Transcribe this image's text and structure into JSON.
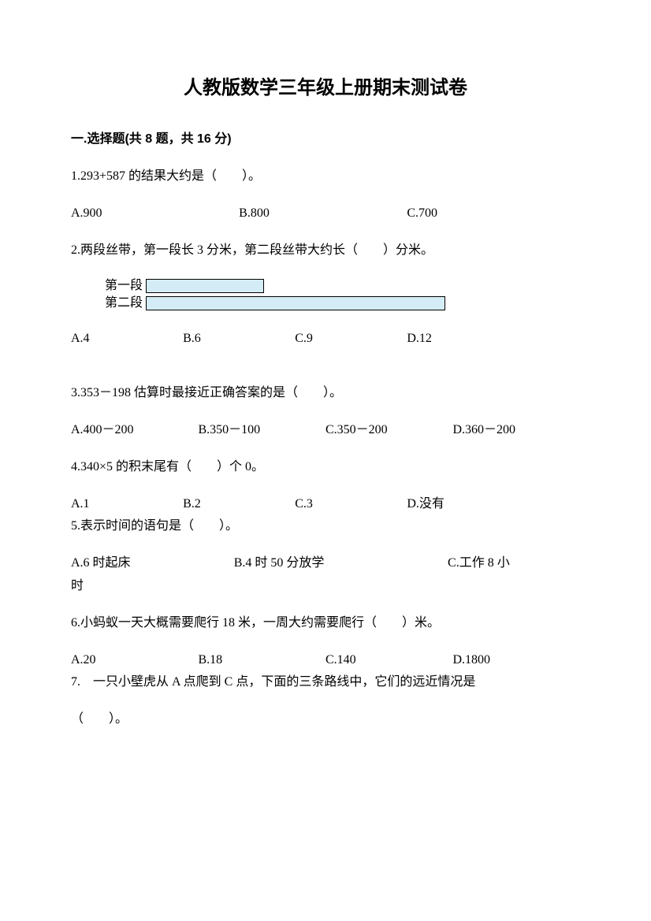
{
  "title": "人教版数学三年级上册期末测试卷",
  "section": {
    "header": "一.选择题(共 8 题，共 16 分)"
  },
  "q1": {
    "text": "1.293+587 的结果大约是（　　）。",
    "a": "A.900",
    "b": "B.800",
    "c": "C.700"
  },
  "q2": {
    "text": "2.两段丝带，第一段长 3 分米，第二段丝带大约长（　　）分米。",
    "bar1_label": "第一段",
    "bar2_label": "第二段",
    "bar1_width": 150,
    "bar2_width": 380,
    "bar_fill": "#d4ecf5",
    "a": "A.4",
    "b": "B.6",
    "c": "C.9",
    "d": "D.12"
  },
  "q3": {
    "text": "3.353－198 估算时最接近正确答案的是（　　）。",
    "a": "A.400－200",
    "b": "B.350－100",
    "c": "C.350－200",
    "d": "D.360－200"
  },
  "q4": {
    "text": "4.340×5 的积末尾有（　　）个 0。",
    "a": "A.1",
    "b": "B.2",
    "c": "C.3",
    "d": "D.没有"
  },
  "q5": {
    "text": "5.表示时间的语句是（　　）。",
    "a": "A.6 时起床",
    "b": "B.4 时 50 分放学",
    "c": "C.工作 8 小",
    "c2": "时"
  },
  "q6": {
    "text": "6.小蚂蚁一天大概需要爬行 18 米，一周大约需要爬行（　　）米。",
    "a": "A.20",
    "b": "B.18",
    "c": "C.140",
    "d": "D.1800"
  },
  "q7": {
    "text": "7.　一只小壁虎从 A 点爬到 C 点，下面的三条路线中，它们的远近情况是",
    "text2": "（　　）。"
  }
}
